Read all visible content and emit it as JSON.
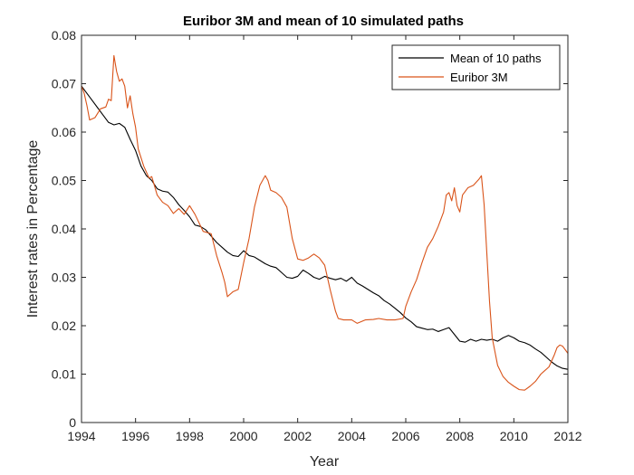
{
  "chart_data": {
    "type": "line",
    "title": "Euribor 3M and mean of 10 simulated paths",
    "xlabel": "Year",
    "ylabel": "Interest rates in Percentage",
    "xlim": [
      1994,
      2012
    ],
    "ylim": [
      0,
      0.08
    ],
    "xticks": [
      "1994",
      "1996",
      "1998",
      "2000",
      "2002",
      "2004",
      "2006",
      "2008",
      "2010",
      "2012"
    ],
    "yticks": [
      "0",
      "0.01",
      "0.02",
      "0.03",
      "0.04",
      "0.05",
      "0.06",
      "0.07",
      "0.08"
    ],
    "grid": false,
    "legend_position": "top-right",
    "series": [
      {
        "name": "Mean of 10 paths",
        "color": "#000000",
        "points": [
          [
            1994.0,
            0.0695
          ],
          [
            1994.2,
            0.068
          ],
          [
            1994.4,
            0.0665
          ],
          [
            1994.6,
            0.065
          ],
          [
            1994.8,
            0.0635
          ],
          [
            1995.0,
            0.062
          ],
          [
            1995.2,
            0.0615
          ],
          [
            1995.4,
            0.0618
          ],
          [
            1995.6,
            0.061
          ],
          [
            1995.8,
            0.0585
          ],
          [
            1996.0,
            0.0562
          ],
          [
            1996.2,
            0.053
          ],
          [
            1996.4,
            0.051
          ],
          [
            1996.6,
            0.05
          ],
          [
            1996.8,
            0.0483
          ],
          [
            1997.0,
            0.0478
          ],
          [
            1997.2,
            0.0476
          ],
          [
            1997.4,
            0.0465
          ],
          [
            1997.6,
            0.045
          ],
          [
            1997.8,
            0.0438
          ],
          [
            1998.0,
            0.0425
          ],
          [
            1998.2,
            0.0408
          ],
          [
            1998.4,
            0.0405
          ],
          [
            1998.6,
            0.0398
          ],
          [
            1998.8,
            0.0385
          ],
          [
            1999.0,
            0.0372
          ],
          [
            1999.2,
            0.0362
          ],
          [
            1999.4,
            0.0352
          ],
          [
            1999.6,
            0.0345
          ],
          [
            1999.8,
            0.0343
          ],
          [
            2000.0,
            0.0355
          ],
          [
            2000.2,
            0.0345
          ],
          [
            2000.4,
            0.0342
          ],
          [
            2000.6,
            0.0335
          ],
          [
            2000.8,
            0.0328
          ],
          [
            2001.0,
            0.0323
          ],
          [
            2001.2,
            0.032
          ],
          [
            2001.4,
            0.031
          ],
          [
            2001.6,
            0.03
          ],
          [
            2001.8,
            0.0298
          ],
          [
            2002.0,
            0.0302
          ],
          [
            2002.2,
            0.0315
          ],
          [
            2002.4,
            0.0308
          ],
          [
            2002.6,
            0.03
          ],
          [
            2002.8,
            0.0296
          ],
          [
            2003.0,
            0.0302
          ],
          [
            2003.2,
            0.0298
          ],
          [
            2003.4,
            0.0295
          ],
          [
            2003.6,
            0.0298
          ],
          [
            2003.8,
            0.0292
          ],
          [
            2004.0,
            0.03
          ],
          [
            2004.2,
            0.0288
          ],
          [
            2004.4,
            0.0282
          ],
          [
            2004.6,
            0.0275
          ],
          [
            2004.8,
            0.0268
          ],
          [
            2005.0,
            0.0262
          ],
          [
            2005.2,
            0.0252
          ],
          [
            2005.4,
            0.0245
          ],
          [
            2005.6,
            0.0236
          ],
          [
            2005.8,
            0.0227
          ],
          [
            2006.0,
            0.0216
          ],
          [
            2006.2,
            0.0208
          ],
          [
            2006.4,
            0.0198
          ],
          [
            2006.6,
            0.0195
          ],
          [
            2006.8,
            0.0192
          ],
          [
            2007.0,
            0.0193
          ],
          [
            2007.2,
            0.0188
          ],
          [
            2007.4,
            0.0192
          ],
          [
            2007.6,
            0.0196
          ],
          [
            2007.8,
            0.0182
          ],
          [
            2008.0,
            0.0168
          ],
          [
            2008.2,
            0.0166
          ],
          [
            2008.4,
            0.0172
          ],
          [
            2008.6,
            0.0168
          ],
          [
            2008.8,
            0.0172
          ],
          [
            2009.0,
            0.017
          ],
          [
            2009.2,
            0.0172
          ],
          [
            2009.4,
            0.0168
          ],
          [
            2009.6,
            0.0175
          ],
          [
            2009.8,
            0.018
          ],
          [
            2010.0,
            0.0175
          ],
          [
            2010.2,
            0.0168
          ],
          [
            2010.4,
            0.0165
          ],
          [
            2010.6,
            0.016
          ],
          [
            2010.8,
            0.0152
          ],
          [
            2011.0,
            0.0145
          ],
          [
            2011.2,
            0.0135
          ],
          [
            2011.4,
            0.0125
          ],
          [
            2011.6,
            0.0117
          ],
          [
            2011.8,
            0.0112
          ],
          [
            2012.0,
            0.011
          ]
        ]
      },
      {
        "name": "Euribor 3M",
        "color": "#D95319",
        "points": [
          [
            1994.0,
            0.0695
          ],
          [
            1994.1,
            0.068
          ],
          [
            1994.2,
            0.0655
          ],
          [
            1994.3,
            0.0625
          ],
          [
            1994.5,
            0.063
          ],
          [
            1994.7,
            0.0648
          ],
          [
            1994.9,
            0.0652
          ],
          [
            1995.0,
            0.0668
          ],
          [
            1995.1,
            0.0665
          ],
          [
            1995.2,
            0.0758
          ],
          [
            1995.3,
            0.0725
          ],
          [
            1995.4,
            0.0705
          ],
          [
            1995.5,
            0.071
          ],
          [
            1995.6,
            0.0695
          ],
          [
            1995.7,
            0.065
          ],
          [
            1995.8,
            0.0675
          ],
          [
            1995.9,
            0.0638
          ],
          [
            1996.0,
            0.061
          ],
          [
            1996.1,
            0.0565
          ],
          [
            1996.3,
            0.053
          ],
          [
            1996.5,
            0.0505
          ],
          [
            1996.6,
            0.0508
          ],
          [
            1996.8,
            0.047
          ],
          [
            1997.0,
            0.0455
          ],
          [
            1997.2,
            0.0448
          ],
          [
            1997.4,
            0.0432
          ],
          [
            1997.6,
            0.0442
          ],
          [
            1997.8,
            0.043
          ],
          [
            1998.0,
            0.0448
          ],
          [
            1998.2,
            0.043
          ],
          [
            1998.5,
            0.0395
          ],
          [
            1998.8,
            0.039
          ],
          [
            1999.0,
            0.0345
          ],
          [
            1999.2,
            0.031
          ],
          [
            1999.3,
            0.029
          ],
          [
            1999.4,
            0.026
          ],
          [
            1999.6,
            0.027
          ],
          [
            1999.8,
            0.0275
          ],
          [
            2000.0,
            0.033
          ],
          [
            2000.2,
            0.038
          ],
          [
            2000.4,
            0.0445
          ],
          [
            2000.6,
            0.049
          ],
          [
            2000.8,
            0.051
          ],
          [
            2000.9,
            0.05
          ],
          [
            2001.0,
            0.048
          ],
          [
            2001.2,
            0.0475
          ],
          [
            2001.4,
            0.0465
          ],
          [
            2001.6,
            0.0445
          ],
          [
            2001.8,
            0.038
          ],
          [
            2002.0,
            0.0338
          ],
          [
            2002.2,
            0.0335
          ],
          [
            2002.4,
            0.034
          ],
          [
            2002.6,
            0.0348
          ],
          [
            2002.8,
            0.034
          ],
          [
            2003.0,
            0.0325
          ],
          [
            2003.2,
            0.0275
          ],
          [
            2003.4,
            0.023
          ],
          [
            2003.5,
            0.0215
          ],
          [
            2003.7,
            0.0212
          ],
          [
            2004.0,
            0.0212
          ],
          [
            2004.2,
            0.0205
          ],
          [
            2004.5,
            0.0212
          ],
          [
            2004.8,
            0.0213
          ],
          [
            2005.0,
            0.0215
          ],
          [
            2005.3,
            0.0212
          ],
          [
            2005.6,
            0.0212
          ],
          [
            2005.9,
            0.0215
          ],
          [
            2006.0,
            0.024
          ],
          [
            2006.2,
            0.027
          ],
          [
            2006.4,
            0.0295
          ],
          [
            2006.6,
            0.033
          ],
          [
            2006.8,
            0.0362
          ],
          [
            2007.0,
            0.038
          ],
          [
            2007.2,
            0.0405
          ],
          [
            2007.4,
            0.0435
          ],
          [
            2007.5,
            0.047
          ],
          [
            2007.6,
            0.0475
          ],
          [
            2007.7,
            0.0458
          ],
          [
            2007.8,
            0.0485
          ],
          [
            2007.9,
            0.0448
          ],
          [
            2008.0,
            0.0435
          ],
          [
            2008.1,
            0.047
          ],
          [
            2008.3,
            0.0485
          ],
          [
            2008.5,
            0.049
          ],
          [
            2008.7,
            0.0502
          ],
          [
            2008.8,
            0.051
          ],
          [
            2008.9,
            0.045
          ],
          [
            2009.0,
            0.035
          ],
          [
            2009.1,
            0.025
          ],
          [
            2009.2,
            0.0175
          ],
          [
            2009.4,
            0.0118
          ],
          [
            2009.6,
            0.0095
          ],
          [
            2009.8,
            0.0083
          ],
          [
            2010.0,
            0.0075
          ],
          [
            2010.2,
            0.0068
          ],
          [
            2010.4,
            0.0067
          ],
          [
            2010.6,
            0.0075
          ],
          [
            2010.8,
            0.0085
          ],
          [
            2011.0,
            0.01
          ],
          [
            2011.1,
            0.0105
          ],
          [
            2011.3,
            0.0115
          ],
          [
            2011.5,
            0.014
          ],
          [
            2011.6,
            0.0155
          ],
          [
            2011.7,
            0.016
          ],
          [
            2011.8,
            0.0158
          ],
          [
            2012.0,
            0.0143
          ]
        ]
      }
    ]
  }
}
